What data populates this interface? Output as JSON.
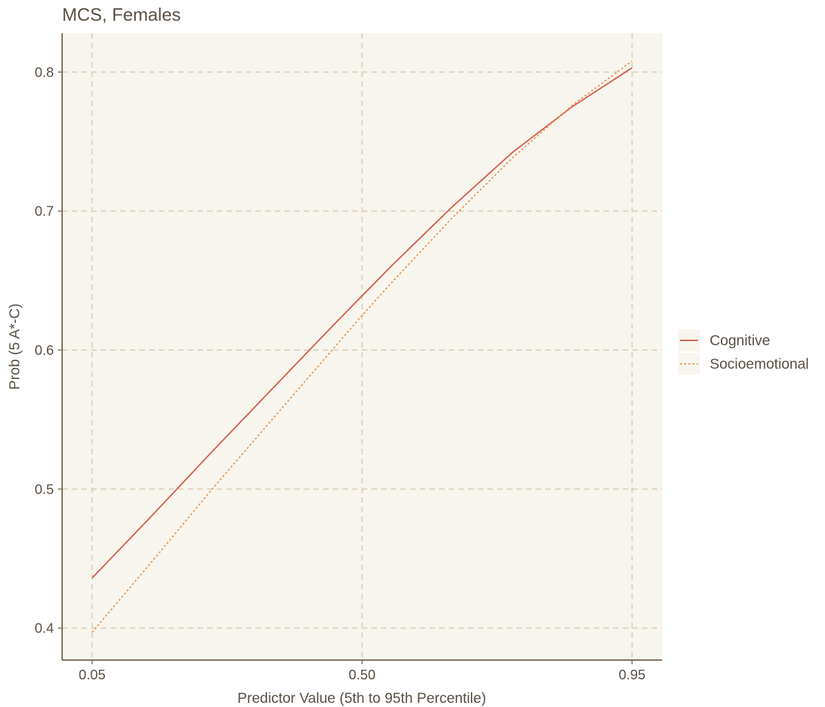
{
  "chart_data": {
    "type": "line",
    "title": "MCS, Females",
    "xlabel": "Predictor Value (5th to 95th Percentile)",
    "ylabel": "Prob (5 A*-C)",
    "x_ticks": [
      0.05,
      0.5,
      0.95
    ],
    "x_tick_labels": [
      "0.05",
      "0.50",
      "0.95"
    ],
    "y_ticks": [
      0.4,
      0.5,
      0.6,
      0.7,
      0.8
    ],
    "y_tick_labels": [
      "0.4",
      "0.5",
      "0.6",
      "0.7",
      "0.8"
    ],
    "xlim": [
      0.0,
      1.0
    ],
    "ylim": [
      0.377,
      0.828
    ],
    "grid": true,
    "legend_position": "right",
    "series": [
      {
        "name": "Cognitive",
        "color": "#d35f4a",
        "dash": "solid",
        "x": [
          0.05,
          0.15,
          0.25,
          0.35,
          0.45,
          0.5,
          0.55,
          0.65,
          0.75,
          0.85,
          0.95
        ],
        "y": [
          0.436,
          0.481,
          0.527,
          0.572,
          0.617,
          0.639,
          0.661,
          0.703,
          0.742,
          0.775,
          0.803
        ]
      },
      {
        "name": "Socioemotional",
        "color": "#eb9a5a",
        "dash": "dotted",
        "x": [
          0.05,
          0.15,
          0.25,
          0.35,
          0.45,
          0.5,
          0.55,
          0.65,
          0.75,
          0.85,
          0.95
        ],
        "y": [
          0.397,
          0.448,
          0.5,
          0.55,
          0.6,
          0.625,
          0.649,
          0.695,
          0.738,
          0.776,
          0.808
        ]
      }
    ]
  }
}
